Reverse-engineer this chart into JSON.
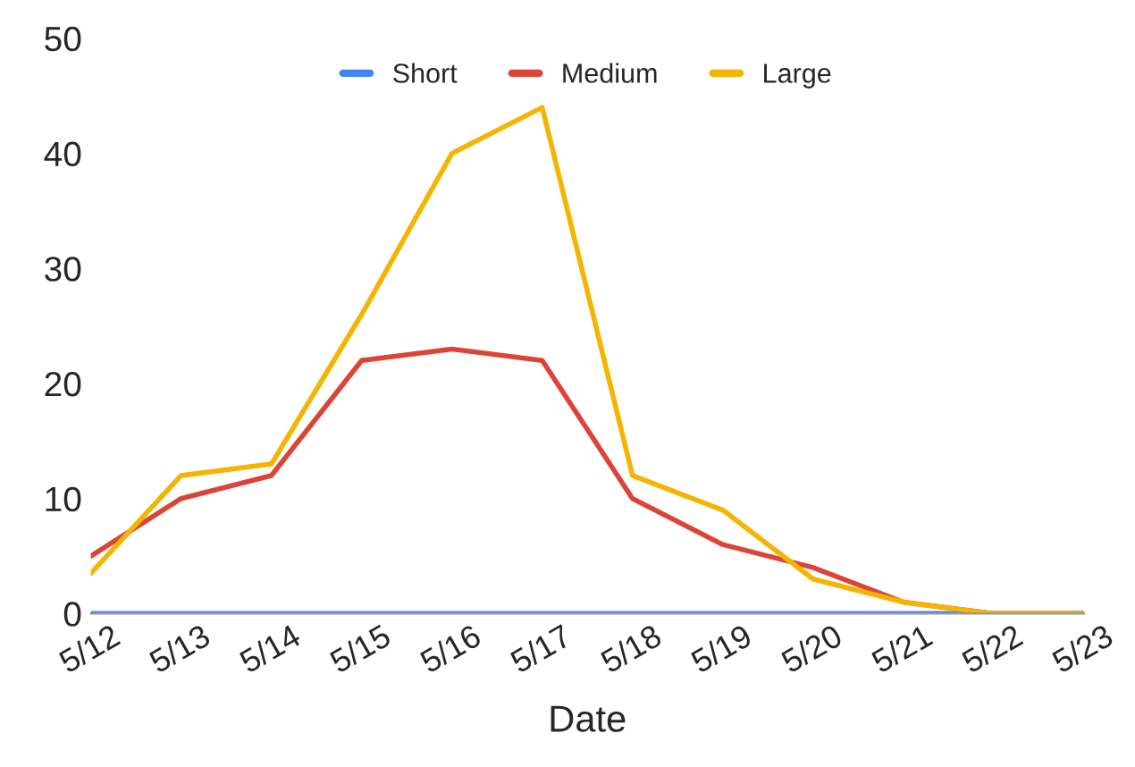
{
  "chart_data": {
    "type": "line",
    "xlabel": "Date",
    "categories": [
      "5/12",
      "5/13",
      "5/14",
      "5/15",
      "5/16",
      "5/17",
      "5/18",
      "5/19",
      "5/20",
      "5/21",
      "5/22",
      "5/23"
    ],
    "series": [
      {
        "name": "Short",
        "color": "#4285f4",
        "values": [
          0,
          0,
          0,
          0,
          0,
          0,
          0,
          0,
          0,
          0,
          0,
          0
        ]
      },
      {
        "name": "Medium",
        "color": "#db4437",
        "values": [
          5,
          10,
          12,
          22,
          23,
          22,
          10,
          6,
          4,
          1,
          0,
          0
        ]
      },
      {
        "name": "Large",
        "color": "#f4b400",
        "values": [
          3.5,
          12,
          13,
          26,
          40,
          44,
          12,
          9,
          3,
          1,
          0,
          0
        ]
      }
    ],
    "ylim": [
      0,
      50
    ],
    "yticks": [
      0,
      10,
      20,
      30,
      40,
      50
    ],
    "grid": false,
    "legend": "top",
    "marker": "none",
    "line_style": "solid"
  }
}
